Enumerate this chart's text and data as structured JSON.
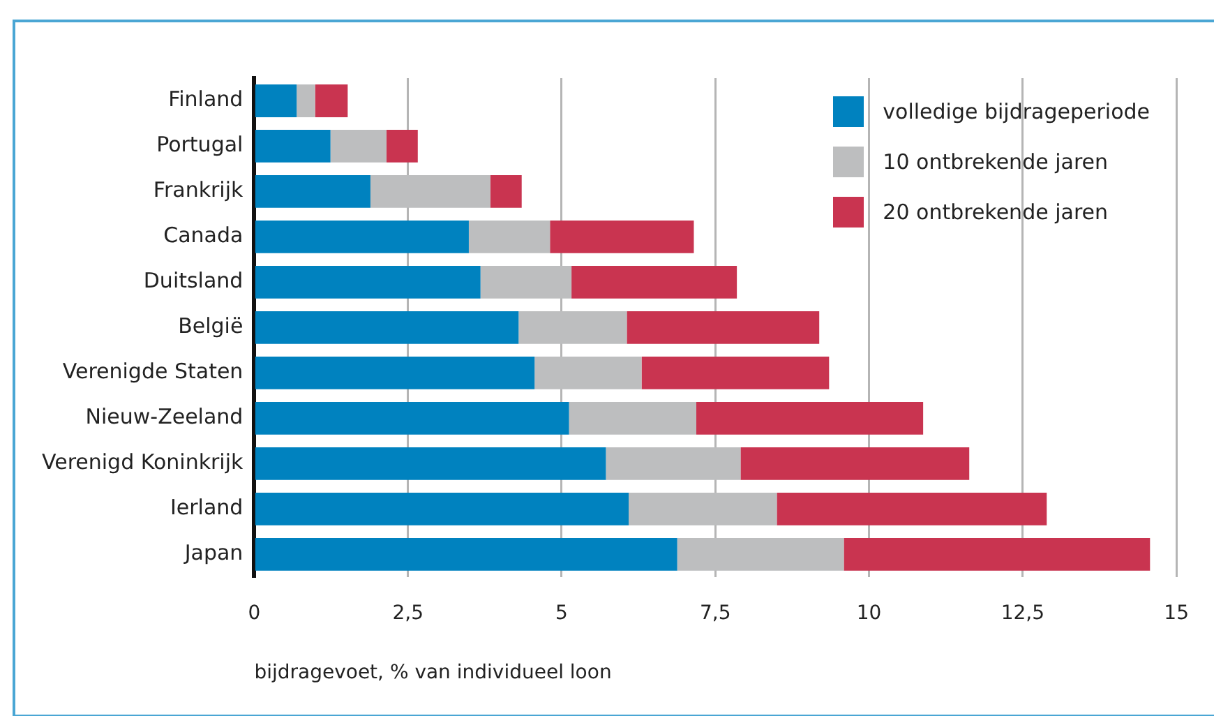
{
  "chart_data": {
    "type": "bar",
    "orientation": "horizontal",
    "stacked": true,
    "categories": [
      "Finland",
      "Portugal",
      "Frankrijk",
      "Canada",
      "Duitsland",
      "België",
      "Verenigde Staten",
      "Nieuw-Zeeland",
      "Verenigd Koninkrijk",
      "Ierland",
      "Japan"
    ],
    "series": [
      {
        "name": "volledige bijdrageperiode",
        "color": "#0082bf",
        "values": [
          0.69,
          1.24,
          1.89,
          3.49,
          3.68,
          4.3,
          4.56,
          5.12,
          5.72,
          6.09,
          6.88
        ]
      },
      {
        "name": "10 ontbrekende jaren",
        "color": "#bdbebf",
        "values": [
          0.3,
          0.91,
          1.95,
          1.32,
          1.48,
          1.76,
          1.74,
          2.07,
          2.19,
          2.41,
          2.71
        ]
      },
      {
        "name": "20 ontbrekende jaren",
        "color": "#c93450",
        "values": [
          0.53,
          0.51,
          0.51,
          2.34,
          2.69,
          3.13,
          3.05,
          3.69,
          3.72,
          4.39,
          4.98
        ]
      }
    ],
    "xlim": [
      0,
      15
    ],
    "xticks": [
      {
        "value": 0,
        "label": "0"
      },
      {
        "value": 2.5,
        "label": "2,5"
      },
      {
        "value": 5,
        "label": "5"
      },
      {
        "value": 7.5,
        "label": "7,5"
      },
      {
        "value": 10,
        "label": "10"
      },
      {
        "value": 12.5,
        "label": "12,5"
      },
      {
        "value": 15,
        "label": "15"
      }
    ],
    "xlabel": "bijdragevoet, % van individueel loon",
    "grid": "x",
    "legend": "top right"
  }
}
